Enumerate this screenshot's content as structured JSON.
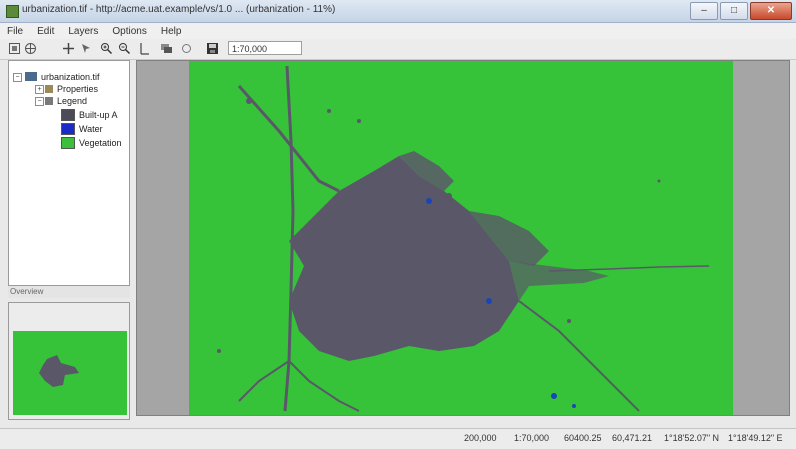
{
  "window": {
    "title": "urbanization.tif - http://acme.uat.example/vs/1.0 ... (urbanization - 11%)",
    "controls": {
      "minimize": "–",
      "maximize": "□",
      "close": "✕"
    }
  },
  "menu": {
    "items": [
      "File",
      "Edit",
      "Layers",
      "Options",
      "Help"
    ]
  },
  "toolbar": {
    "tools": [
      "zoom-to-extent",
      "globe",
      "pan",
      "identify",
      "zoom-in",
      "zoom-out",
      "select",
      "layers",
      "info",
      "save"
    ],
    "scale_value": "1:70,000"
  },
  "toc": {
    "root_label": "urbanization.tif",
    "properties_label": "Properties",
    "legend_label": "Legend",
    "legend": [
      {
        "label": "Built-up A",
        "color": "#4a4a58"
      },
      {
        "label": "Water",
        "color": "#1a2bc8"
      },
      {
        "label": "Vegetation",
        "color": "#3ac03a"
      }
    ]
  },
  "overview": {
    "splitter_label": "Overview"
  },
  "map": {
    "background_color": "#36c33a",
    "urban_color": "#5a5868",
    "water_color": "#1846b8"
  },
  "status": {
    "cell1": "200,000",
    "cell2": "1:70,000",
    "cell3": "60400.25",
    "cell4": "60,471.21",
    "cell5": "1°18'52.07\" N",
    "cell6": "1°18'49.12\" E"
  }
}
